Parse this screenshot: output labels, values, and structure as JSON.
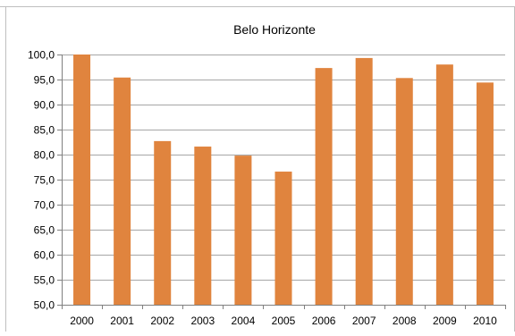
{
  "chart_data": {
    "type": "bar",
    "title": "Belo Horizonte",
    "xlabel": "",
    "ylabel": "",
    "categories": [
      "2000",
      "2001",
      "2002",
      "2003",
      "2004",
      "2005",
      "2006",
      "2007",
      "2008",
      "2009",
      "2010"
    ],
    "values": [
      100.0,
      95.4,
      82.7,
      81.6,
      79.8,
      76.6,
      97.3,
      99.3,
      95.3,
      98.0,
      94.4
    ],
    "ylim": [
      50,
      100
    ],
    "yticks": [
      "50,0",
      "55,0",
      "60,0",
      "65,0",
      "70,0",
      "75,0",
      "80,0",
      "85,0",
      "90,0",
      "95,0",
      "100,0"
    ],
    "grid": true,
    "legend": "none",
    "bar_color": "#E0843E",
    "grid_color": "#A6A6A6",
    "axis_color": "#808080"
  }
}
